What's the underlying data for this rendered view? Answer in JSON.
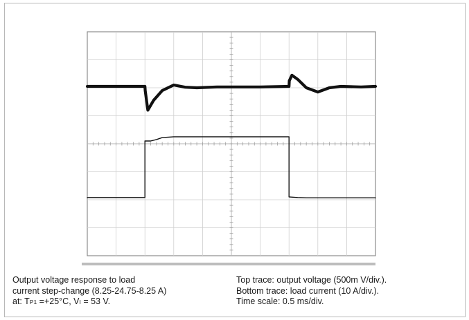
{
  "chart_data": {
    "type": "line",
    "title": "",
    "xlabel": "",
    "ylabel": "",
    "grid": true,
    "divisions": {
      "x": 10,
      "y": 8
    },
    "x_unit": "div",
    "xlim": [
      0,
      10
    ],
    "series": [
      {
        "name": "",
        "y_unit": "div",
        "x": [
          0,
          2.0,
          2.01,
          2.1,
          2.3,
          2.6,
          3.0,
          3.4,
          3.8,
          4.5,
          6.0,
          7.0,
          7.01,
          7.1,
          7.3,
          7.6,
          8.0,
          8.4,
          8.8,
          9.5,
          10
        ],
        "y": [
          6.05,
          6.05,
          5.9,
          5.2,
          5.55,
          5.9,
          6.1,
          6.02,
          6.0,
          6.03,
          6.03,
          6.05,
          6.25,
          6.45,
          6.3,
          6.0,
          5.85,
          6.0,
          6.05,
          6.03,
          6.05
        ]
      },
      {
        "name": "",
        "y_unit": "div",
        "x": [
          0,
          2.0,
          2.0,
          2.2,
          2.4,
          2.6,
          3.0,
          4.0,
          5.0,
          6.0,
          7.0,
          7.0,
          7.3,
          7.6,
          8.0,
          9.0,
          10
        ],
        "y": [
          2.08,
          2.08,
          4.1,
          4.1,
          4.15,
          4.22,
          4.25,
          4.25,
          4.25,
          4.25,
          4.25,
          2.1,
          2.08,
          2.07,
          2.07,
          2.07,
          2.07
        ]
      }
    ]
  },
  "caption": {
    "left": {
      "line1": "Output voltage response to load",
      "line2": "current step-change (8.25-24.75-8.25 A)",
      "line3_prefix": "at: T",
      "line3_sub1": "P1",
      "line3_mid": " =+25°C, V",
      "line3_sub2": "I",
      "line3_suffix": " = 53 V."
    },
    "right": {
      "line1": "Top trace: output voltage (500m V/div.).",
      "line2": "Bottom trace: load current (10 A/div.).",
      "line3": "Time scale: 0.5 ms/div."
    }
  }
}
